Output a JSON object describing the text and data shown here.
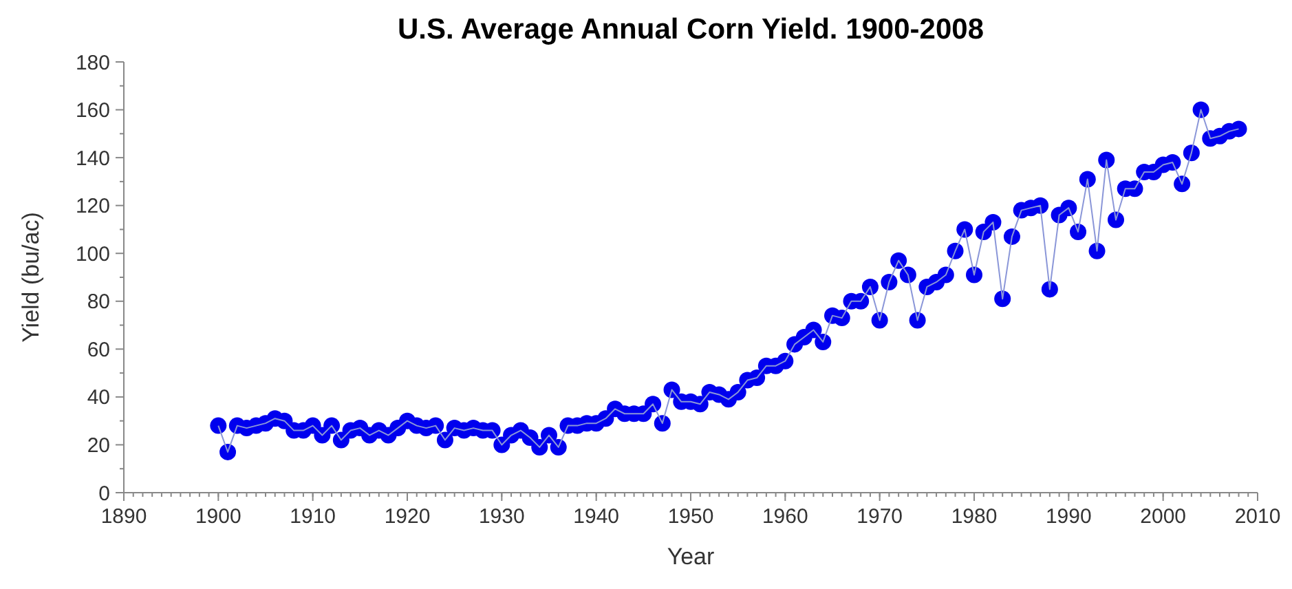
{
  "chart_data": {
    "type": "line",
    "title": "U.S. Average Annual Corn Yield. 1900-2008",
    "xlabel": "Year",
    "ylabel": "Yield (bu/ac)",
    "x": [
      1900,
      1901,
      1902,
      1903,
      1904,
      1905,
      1906,
      1907,
      1908,
      1909,
      1910,
      1911,
      1912,
      1913,
      1914,
      1915,
      1916,
      1917,
      1918,
      1919,
      1920,
      1921,
      1922,
      1923,
      1924,
      1925,
      1926,
      1927,
      1928,
      1929,
      1930,
      1931,
      1932,
      1933,
      1934,
      1935,
      1936,
      1937,
      1938,
      1939,
      1940,
      1941,
      1942,
      1943,
      1944,
      1945,
      1946,
      1947,
      1948,
      1949,
      1950,
      1951,
      1952,
      1953,
      1954,
      1955,
      1956,
      1957,
      1958,
      1959,
      1960,
      1961,
      1962,
      1963,
      1964,
      1965,
      1966,
      1967,
      1968,
      1969,
      1970,
      1971,
      1972,
      1973,
      1974,
      1975,
      1976,
      1977,
      1978,
      1979,
      1980,
      1981,
      1982,
      1983,
      1984,
      1985,
      1986,
      1987,
      1988,
      1989,
      1990,
      1991,
      1992,
      1993,
      1994,
      1995,
      1996,
      1997,
      1998,
      1999,
      2000,
      2001,
      2002,
      2003,
      2004,
      2005,
      2006,
      2007,
      2008
    ],
    "series": [
      {
        "color": "#0000ee",
        "values": [
          28,
          17,
          28,
          27,
          28,
          29,
          31,
          30,
          26,
          26,
          28,
          24,
          28,
          22,
          26,
          27,
          24,
          26,
          24,
          27,
          30,
          28,
          27,
          28,
          22,
          27,
          26,
          27,
          26,
          26,
          20,
          24,
          26,
          23,
          19,
          24,
          19,
          28,
          28,
          29,
          29,
          31,
          35,
          33,
          33,
          33,
          37,
          29,
          43,
          38,
          38,
          37,
          42,
          41,
          39,
          42,
          47,
          48,
          53,
          53,
          55,
          62,
          65,
          68,
          63,
          74,
          73,
          80,
          80,
          86,
          72,
          88,
          97,
          91,
          72,
          86,
          88,
          91,
          101,
          110,
          91,
          109,
          113,
          81,
          107,
          118,
          119,
          120,
          85,
          116,
          119,
          109,
          131,
          101,
          139,
          114,
          127,
          127,
          134,
          134,
          137,
          138,
          129,
          142,
          160,
          148,
          149,
          151,
          152
        ]
      }
    ],
    "xlim": [
      1890,
      2010
    ],
    "xticks": [
      1890,
      1900,
      1910,
      1920,
      1930,
      1940,
      1950,
      1960,
      1970,
      1980,
      1990,
      2000,
      2010
    ],
    "ylim": [
      0,
      180
    ],
    "yticks": [
      0,
      20,
      40,
      60,
      80,
      100,
      120,
      140,
      160,
      180
    ],
    "marker": "circle",
    "line_style": "solid"
  }
}
